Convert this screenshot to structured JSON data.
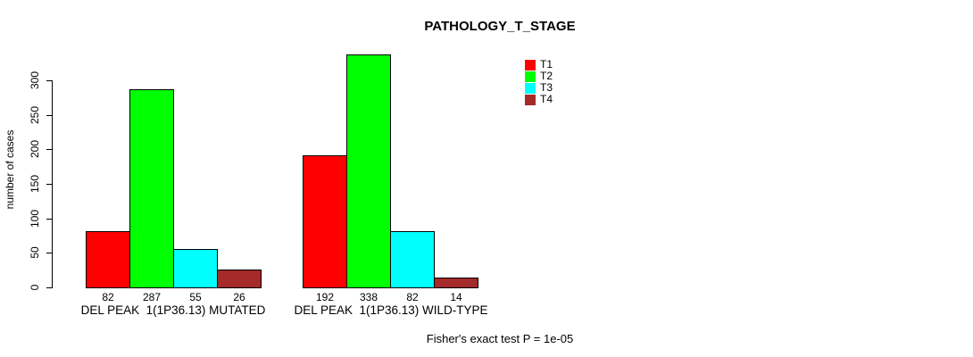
{
  "chart_data": {
    "type": "bar",
    "title": "PATHOLOGY_T_STAGE",
    "ylabel": "number of cases",
    "xlabel": "",
    "ylim": [
      0,
      350
    ],
    "yticks": [
      0,
      50,
      100,
      150,
      200,
      250,
      300
    ],
    "grid": false,
    "legend_position": "top-right",
    "categories": [
      "DEL PEAK  1(1P36.13) MUTATED",
      "DEL PEAK  1(1P36.13) WILD-TYPE"
    ],
    "series": [
      {
        "name": "T1",
        "color": "#ff0000",
        "values": [
          82,
          192
        ]
      },
      {
        "name": "T2",
        "color": "#00ff00",
        "values": [
          287,
          338
        ]
      },
      {
        "name": "T3",
        "color": "#00ffff",
        "values": [
          55,
          82
        ]
      },
      {
        "name": "T4",
        "color": "#a52a2a",
        "values": [
          26,
          14
        ]
      }
    ],
    "bar_value_labels": [
      [
        82,
        287,
        55,
        26
      ],
      [
        192,
        338,
        82,
        14
      ]
    ],
    "annotation": "Fisher's exact test P = 1e-05"
  },
  "colors": {
    "background": "#ffffff",
    "axis": "#000000",
    "text": "#000000"
  }
}
